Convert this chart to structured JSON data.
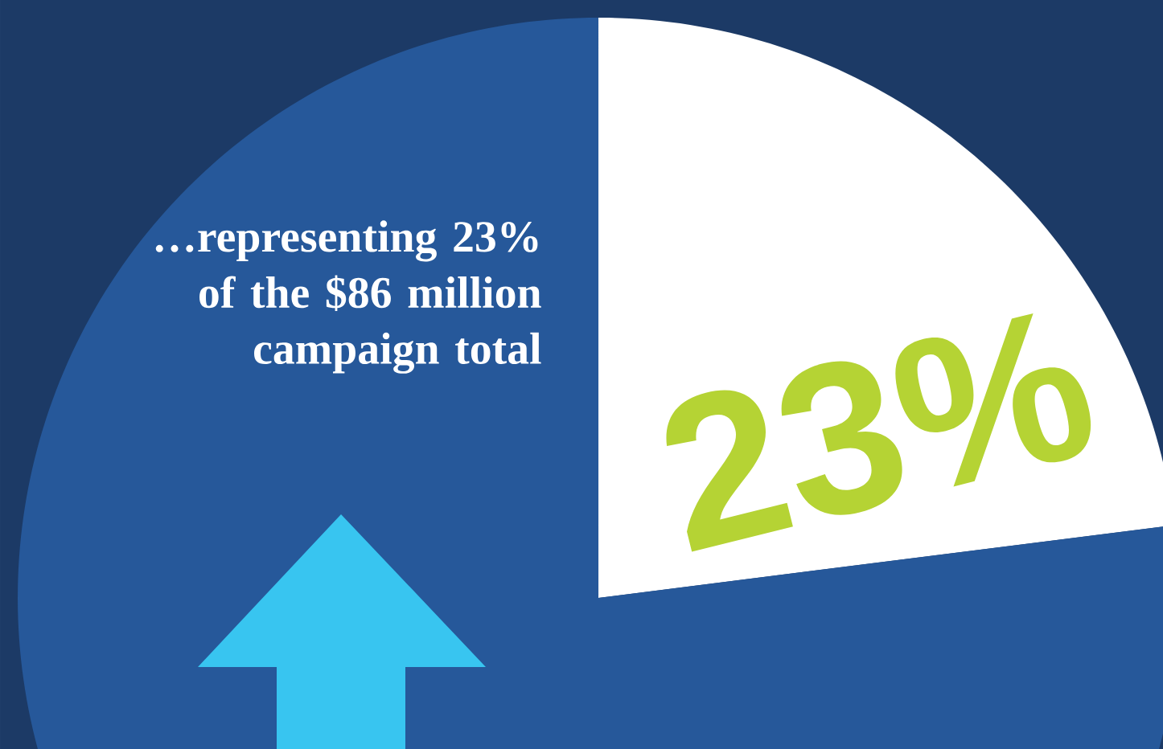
{
  "chart_data": {
    "type": "pie",
    "categories": [
      null,
      null
    ],
    "values": [
      23,
      77
    ],
    "colors": [
      "#ffffff",
      "#26589a"
    ],
    "value_labels": [
      "23%",
      null
    ],
    "annotations": [
      "…representing 23% of the $86 million campaign total"
    ]
  }
}
